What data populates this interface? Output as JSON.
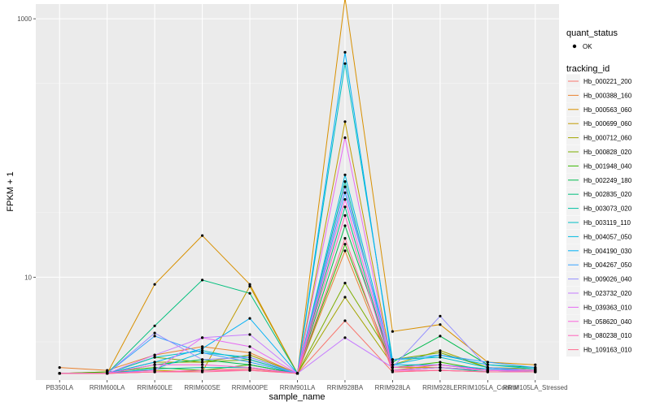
{
  "chart_data": {
    "type": "line",
    "xlabel": "sample_name",
    "ylabel": "FPKM + 1",
    "y_scale": "log10",
    "ylim": [
      1.6,
      1300
    ],
    "y_ticks": [
      {
        "value": 10,
        "label": "10"
      },
      {
        "value": 1000,
        "label": "1000"
      }
    ],
    "categories": [
      "PB350LA",
      "RRIM600LA",
      "RRIM600LE",
      "RRIM600SE",
      "RRIM600PE",
      "RRIM901LA",
      "RRIM928BA",
      "RRIM928LA",
      "RRIM928LE",
      "RRIM105LA_Control",
      "RRIM105LA_Stressed"
    ],
    "grid": true,
    "legend_placement": "right",
    "quant_status_legend": {
      "title": "quant_status",
      "entries": [
        "OK"
      ]
    },
    "legend_title": "tracking_id",
    "series": [
      {
        "name": "Hb_000221_200",
        "color": "#F8766D",
        "values": [
          1.8,
          1.8,
          1.85,
          1.9,
          1.95,
          1.8,
          4.6,
          1.85,
          1.9,
          1.85,
          1.85
        ]
      },
      {
        "name": "Hb_000388_160",
        "color": "#EA8331",
        "values": [
          2.0,
          1.9,
          2.5,
          2.9,
          2.6,
          1.8,
          16.0,
          1.9,
          2.1,
          1.9,
          1.9
        ]
      },
      {
        "name": "Hb_000563_060",
        "color": "#D89000",
        "values": [
          1.8,
          1.8,
          8.8,
          21.0,
          8.8,
          1.8,
          1450,
          3.8,
          4.3,
          2.2,
          2.1
        ]
      },
      {
        "name": "Hb_000699_060",
        "color": "#C09B00",
        "values": [
          1.8,
          1.85,
          1.9,
          1.85,
          8.5,
          1.8,
          160,
          2.0,
          2.0,
          1.9,
          1.9
        ]
      },
      {
        "name": "Hb_000712_060",
        "color": "#A3A500",
        "values": [
          1.8,
          1.8,
          2.2,
          2.2,
          2.5,
          1.8,
          7.0,
          2.1,
          2.7,
          2.0,
          1.9
        ]
      },
      {
        "name": "Hb_000828_020",
        "color": "#7CAE00",
        "values": [
          1.8,
          1.8,
          2.4,
          2.2,
          2.3,
          1.8,
          9.0,
          2.3,
          2.6,
          2.0,
          1.95
        ]
      },
      {
        "name": "Hb_001948_040",
        "color": "#39B600",
        "values": [
          1.8,
          1.85,
          2.0,
          1.9,
          2.1,
          1.8,
          18.0,
          2.0,
          2.2,
          1.9,
          1.9
        ]
      },
      {
        "name": "Hb_002249_180",
        "color": "#00BB4E",
        "values": [
          1.8,
          1.8,
          2.1,
          2.3,
          2.1,
          1.8,
          25.0,
          2.2,
          3.5,
          2.1,
          2.0
        ]
      },
      {
        "name": "Hb_002835_020",
        "color": "#00BF7D",
        "values": [
          1.8,
          1.8,
          4.2,
          9.5,
          7.5,
          1.8,
          35.0,
          1.9,
          2.0,
          1.85,
          1.85
        ]
      },
      {
        "name": "Hb_003073_020",
        "color": "#00C1A3",
        "values": [
          1.8,
          1.8,
          1.95,
          2.0,
          2.0,
          1.8,
          55.0,
          1.9,
          2.0,
          1.9,
          1.85
        ]
      },
      {
        "name": "Hb_003119_110",
        "color": "#00BFC4",
        "values": [
          1.8,
          1.8,
          2.4,
          2.7,
          2.3,
          1.8,
          450,
          2.3,
          2.4,
          2.0,
          1.9
        ]
      },
      {
        "name": "Hb_004057_050",
        "color": "#00BAE0",
        "values": [
          1.8,
          1.8,
          1.95,
          2.6,
          2.4,
          1.8,
          62.0,
          2.1,
          2.5,
          2.1,
          1.95
        ]
      },
      {
        "name": "Hb_004190_030",
        "color": "#00B0F6",
        "values": [
          1.8,
          1.8,
          2.2,
          2.8,
          4.8,
          1.8,
          550,
          2.1,
          2.1,
          1.95,
          1.9
        ]
      },
      {
        "name": "Hb_004267_050",
        "color": "#35A2FF",
        "values": [
          1.8,
          1.8,
          3.5,
          2.6,
          2.2,
          1.8,
          45.0,
          2.3,
          2.5,
          2.2,
          2.0
        ]
      },
      {
        "name": "Hb_009026_040",
        "color": "#9590FF",
        "values": [
          1.8,
          1.8,
          3.7,
          2.3,
          2.4,
          1.8,
          50.0,
          2.0,
          5.0,
          2.0,
          1.9
        ]
      },
      {
        "name": "Hb_023732_020",
        "color": "#C77CFF",
        "values": [
          1.8,
          1.8,
          2.5,
          3.4,
          3.6,
          1.8,
          3.4,
          2.0,
          2.1,
          1.9,
          1.85
        ]
      },
      {
        "name": "Hb_039363_010",
        "color": "#E76BF3",
        "values": [
          1.8,
          1.8,
          1.9,
          3.4,
          2.9,
          1.8,
          120,
          1.9,
          2.0,
          1.9,
          1.9
        ]
      },
      {
        "name": "Hb_058620_040",
        "color": "#FA62DB",
        "values": [
          1.8,
          1.8,
          2.1,
          2.1,
          2.0,
          1.8,
          40.0,
          2.0,
          2.1,
          1.9,
          1.9
        ]
      },
      {
        "name": "Hb_080238_010",
        "color": "#FF62BC",
        "values": [
          1.8,
          1.8,
          1.85,
          1.9,
          1.9,
          1.8,
          30.0,
          1.9,
          1.9,
          1.85,
          1.85
        ]
      },
      {
        "name": "Hb_109163_010",
        "color": "#FF6C91",
        "values": [
          1.8,
          1.8,
          1.85,
          1.85,
          1.9,
          1.8,
          20.0,
          1.85,
          1.9,
          1.85,
          1.85
        ]
      }
    ]
  }
}
